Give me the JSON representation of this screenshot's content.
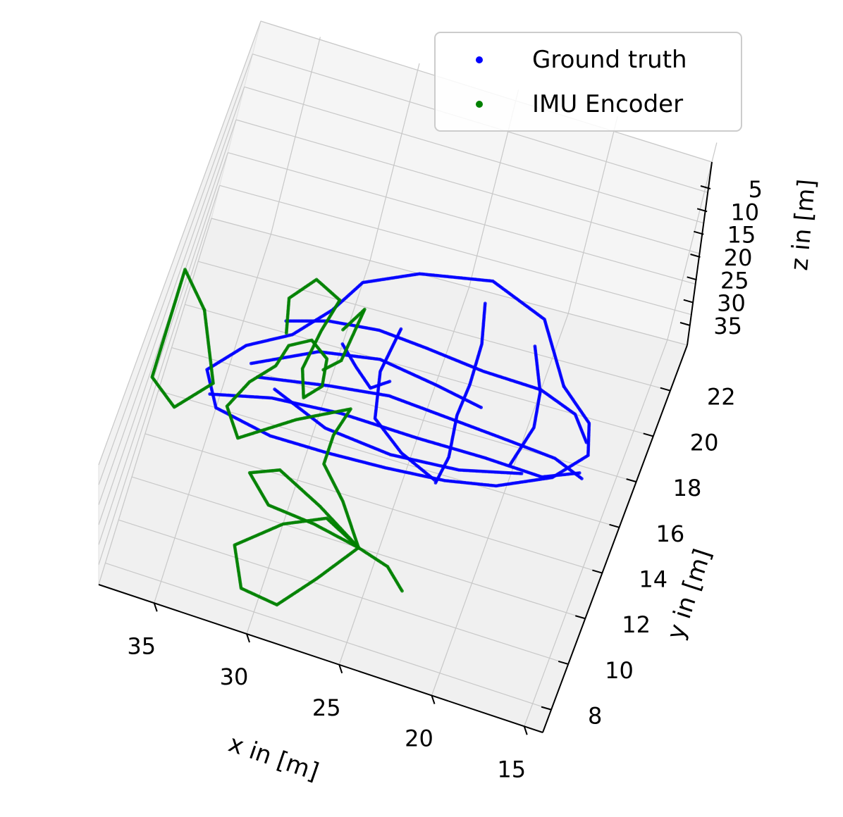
{
  "chart_data": {
    "type": "scatter3d",
    "xlabel": "x in [m]",
    "ylabel": "y in [m]",
    "zlabel": "z in [m]",
    "x_ticks": [
      "35",
      "30",
      "25",
      "20",
      "15"
    ],
    "y_ticks": [
      "8",
      "10",
      "12",
      "14",
      "16",
      "18",
      "20",
      "22"
    ],
    "z_ticks": [
      "5",
      "10",
      "15",
      "20",
      "25",
      "30",
      "35"
    ],
    "legend_position": "top-right",
    "grid": true,
    "series": [
      {
        "name": "Ground truth",
        "color": "#0000ff",
        "paths": [
          [
            [
              19,
              21,
              0
            ],
            [
              21,
              23.5,
              0
            ],
            [
              24,
              24.5,
              0
            ],
            [
              27.5,
              24,
              0
            ],
            [
              30,
              23,
              0
            ],
            [
              31,
              21.5,
              0
            ],
            [
              32.5,
              20,
              0
            ],
            [
              34.5,
              19,
              0
            ],
            [
              36,
              17.5,
              0
            ],
            [
              35,
              16,
              0
            ],
            [
              32,
              15.5,
              0
            ],
            [
              29,
              15.5,
              0
            ],
            [
              26,
              15.6,
              0
            ],
            [
              23,
              15.8,
              0
            ],
            [
              20.5,
              16.2,
              0
            ],
            [
              18,
              17.2,
              0
            ],
            [
              16.7,
              18.5,
              0
            ],
            [
              17.2,
              19.8,
              0
            ],
            [
              19,
              21,
              0
            ]
          ],
          [
            [
              33,
              20.5,
              0
            ],
            [
              31,
              21,
              0
            ],
            [
              28.5,
              21.2,
              0
            ],
            [
              26,
              21,
              0
            ],
            [
              23,
              20.7,
              0
            ],
            [
              20,
              20.6,
              0
            ],
            [
              18,
              20,
              0
            ],
            [
              17,
              19,
              0
            ]
          ],
          [
            [
              33.5,
              17.8,
              0
            ],
            [
              30,
              18.3,
              0
            ],
            [
              27,
              18.6,
              0
            ],
            [
              24,
              18.4,
              0
            ],
            [
              21,
              18.2,
              0
            ],
            [
              18.2,
              18,
              0
            ],
            [
              16.6,
              17.5,
              0
            ]
          ],
          [
            [
              35.5,
              16.5,
              0
            ],
            [
              32.5,
              17.1,
              0
            ],
            [
              29,
              17.3,
              0
            ],
            [
              25,
              17.2,
              0
            ],
            [
              21.5,
              17.2,
              0
            ],
            [
              18.5,
              17.1,
              0
            ],
            [
              16.8,
              17.7,
              0
            ]
          ],
          [
            [
              27.5,
              21.5,
              0
            ],
            [
              27.8,
              19.5,
              0
            ],
            [
              27.3,
              17.5,
              0
            ],
            [
              25.5,
              16.4,
              0
            ],
            [
              23.5,
              15.7,
              0
            ]
          ],
          [
            [
              24,
              23.5,
              0
            ],
            [
              23.5,
              21.8,
              0
            ],
            [
              23.4,
              20,
              0
            ],
            [
              23.5,
              18.6,
              0
            ],
            [
              23.2,
              16.8,
              0
            ],
            [
              23.4,
              15.6,
              0
            ]
          ],
          [
            [
              21,
              22.3,
              0
            ],
            [
              20,
              20.5,
              0
            ],
            [
              19.7,
              19,
              0
            ],
            [
              20.2,
              17.2,
              0
            ]
          ],
          [
            [
              30,
              20.2,
              0
            ],
            [
              29,
              19.4,
              0
            ],
            [
              28,
              18.7,
              0
            ],
            [
              27.2,
              19.2,
              0
            ]
          ],
          [
            [
              34,
              18.3,
              0
            ],
            [
              31,
              19.6,
              0
            ],
            [
              28,
              20,
              0
            ],
            [
              25,
              19.6,
              0
            ],
            [
              22.5,
              19.2,
              0
            ]
          ],
          [
            [
              32.5,
              17.5,
              0
            ],
            [
              29.5,
              16.5,
              0
            ],
            [
              26,
              16.2,
              0
            ],
            [
              22.5,
              16.4,
              0
            ],
            [
              19.5,
              17,
              0
            ]
          ]
        ]
      },
      {
        "name": "IMU Encoder",
        "color": "#008000",
        "paths": [
          [
            [
              26,
              12,
              0
            ],
            [
              27.5,
              10.2,
              0
            ],
            [
              29,
              8.6,
              0
            ],
            [
              31,
              8.8,
              0
            ],
            [
              32,
              10.5,
              0
            ],
            [
              30,
              12,
              0
            ],
            [
              28,
              12.8,
              0
            ],
            [
              26,
              12,
              0
            ]
          ],
          [
            [
              26,
              12,
              0
            ],
            [
              28.5,
              12.4,
              0
            ],
            [
              31,
              12.6,
              0
            ],
            [
              32.4,
              13.7,
              0
            ],
            [
              31,
              14.2,
              0
            ],
            [
              28.5,
              13.2,
              0
            ],
            [
              26,
              12,
              0
            ]
          ],
          [
            [
              26,
              12,
              0
            ],
            [
              24.3,
              11.6,
              0
            ],
            [
              23.2,
              10.8,
              0
            ]
          ],
          [
            [
              26,
              12,
              0
            ],
            [
              27.5,
              13.7,
              0
            ],
            [
              29,
              15,
              0
            ],
            [
              29,
              16.3,
              0
            ],
            [
              28.6,
              17.6,
              0
            ],
            [
              31,
              16.5,
              0
            ],
            [
              33.5,
              15,
              0
            ],
            [
              34.5,
              16.2,
              0
            ],
            [
              33.8,
              17.5,
              0
            ],
            [
              32.8,
              18.5,
              0
            ],
            [
              32.5,
              19.5,
              0
            ],
            [
              31.5,
              20,
              0
            ],
            [
              30.5,
              19.4,
              0
            ],
            [
              30.3,
              18.2,
              0
            ],
            [
              31,
              17.5,
              0
            ],
            [
              31.5,
              18.7,
              0
            ],
            [
              31.2,
              20.5,
              0
            ],
            [
              30.8,
              22,
              0
            ],
            [
              32.2,
              22.6,
              0
            ],
            [
              33.2,
              21.5,
              0
            ],
            [
              32.8,
              20,
              0
            ]
          ],
          [
            [
              37,
              20,
              0
            ],
            [
              38.5,
              21.5,
              0
            ],
            [
              38.5,
              19,
              0
            ],
            [
              38.5,
              16.5,
              0
            ],
            [
              37,
              15.5,
              0
            ],
            [
              35.5,
              17,
              0
            ],
            [
              37,
              20,
              0
            ]
          ],
          [
            [
              30.2,
              20.8,
              0
            ],
            [
              29.5,
              21.9,
              0
            ],
            [
              29.8,
              19.5,
              0
            ],
            [
              30.5,
              18.9,
              0
            ]
          ]
        ]
      }
    ]
  }
}
